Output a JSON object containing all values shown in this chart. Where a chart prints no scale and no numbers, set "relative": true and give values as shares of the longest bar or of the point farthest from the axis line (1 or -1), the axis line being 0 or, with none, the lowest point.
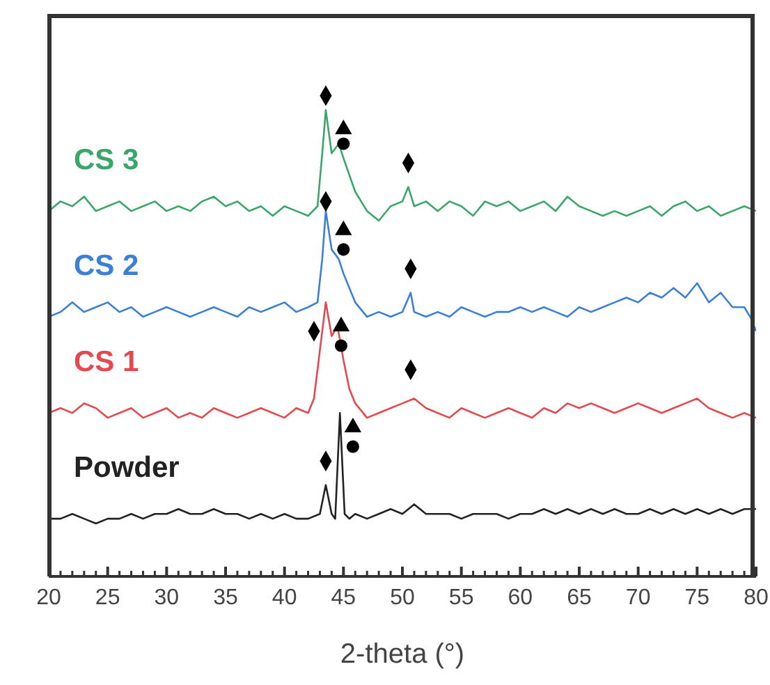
{
  "chart_data": {
    "type": "line",
    "xlabel": "2-theta (°)",
    "relative": true,
    "xlim": [
      20,
      80
    ],
    "xticks": [
      20,
      {
        "value": 21,
        "label": null
      },
      {
        "value": 22,
        "label": null
      },
      {
        "value": 23,
        "label": null
      },
      {
        "value": 24,
        "label": null
      },
      25,
      {
        "value": 26,
        "label": null
      },
      {
        "value": 27,
        "label": null
      },
      {
        "value": 28,
        "label": null
      },
      {
        "value": 29,
        "label": null
      },
      30,
      {
        "value": 31,
        "label": null
      },
      {
        "value": 32,
        "label": null
      },
      {
        "value": 33,
        "label": null
      },
      {
        "value": 34,
        "label": null
      },
      35,
      {
        "value": 36,
        "label": null
      },
      {
        "value": 37,
        "label": null
      },
      {
        "value": 38,
        "label": null
      },
      {
        "value": 39,
        "label": null
      },
      40,
      {
        "value": 41,
        "label": null
      },
      {
        "value": 42,
        "label": null
      },
      {
        "value": 43,
        "label": null
      },
      {
        "value": 44,
        "label": null
      },
      45,
      {
        "value": 46,
        "label": null
      },
      {
        "value": 47,
        "label": null
      },
      {
        "value": 48,
        "label": null
      },
      {
        "value": 49,
        "label": null
      },
      50,
      {
        "value": 51,
        "label": null
      },
      {
        "value": 52,
        "label": null
      },
      {
        "value": 53,
        "label": null
      },
      {
        "value": 54,
        "label": null
      },
      55,
      {
        "value": 56,
        "label": null
      },
      {
        "value": 57,
        "label": null
      },
      {
        "value": 58,
        "label": null
      },
      {
        "value": 59,
        "label": null
      },
      60,
      {
        "value": 61,
        "label": null
      },
      {
        "value": 62,
        "label": null
      },
      {
        "value": 63,
        "label": null
      },
      {
        "value": 64,
        "label": null
      },
      65,
      {
        "value": 66,
        "label": null
      },
      {
        "value": 67,
        "label": null
      },
      {
        "value": 68,
        "label": null
      },
      {
        "value": 69,
        "label": null
      },
      70,
      {
        "value": 71,
        "label": null
      },
      {
        "value": 72,
        "label": null
      },
      {
        "value": 73,
        "label": null
      },
      {
        "value": 74,
        "label": null
      },
      75,
      {
        "value": 76,
        "label": null
      },
      {
        "value": 77,
        "label": null
      },
      {
        "value": 78,
        "label": null
      },
      {
        "value": 79,
        "label": null
      },
      80
    ],
    "grid": false,
    "legend": false,
    "marker": "none",
    "line_style": "solid",
    "series": [
      {
        "name": "CS 3",
        "color": "#3aa66a",
        "x": [
          20,
          21,
          22,
          23,
          24,
          25,
          26,
          27,
          28,
          29,
          30,
          31,
          32,
          33,
          34,
          35,
          36,
          37,
          38,
          39,
          40,
          41,
          42,
          42.8,
          43.2,
          43.5,
          44,
          44.6,
          45,
          46,
          47,
          48,
          49,
          50,
          50.5,
          51,
          52,
          53,
          54,
          55,
          56,
          57,
          58,
          59,
          60,
          61,
          62,
          63,
          64,
          65,
          66,
          67,
          68,
          69,
          70,
          71,
          72,
          73,
          74,
          75,
          76,
          77,
          78,
          79,
          80
        ],
        "values": [
          0.76,
          0.78,
          0.77,
          0.79,
          0.76,
          0.77,
          0.78,
          0.76,
          0.77,
          0.78,
          0.76,
          0.77,
          0.76,
          0.78,
          0.79,
          0.77,
          0.78,
          0.76,
          0.77,
          0.75,
          0.77,
          0.76,
          0.75,
          0.77,
          0.88,
          0.97,
          0.88,
          0.9,
          0.87,
          0.8,
          0.76,
          0.74,
          0.77,
          0.78,
          0.81,
          0.77,
          0.78,
          0.76,
          0.78,
          0.77,
          0.75,
          0.78,
          0.77,
          0.78,
          0.76,
          0.77,
          0.78,
          0.76,
          0.79,
          0.77,
          0.76,
          0.75,
          0.76,
          0.75,
          0.76,
          0.77,
          0.75,
          0.77,
          0.78,
          0.76,
          0.77,
          0.75,
          0.76,
          0.77,
          0.76
        ]
      },
      {
        "name": "CS 2",
        "color": "#3b7fd6",
        "x": [
          20,
          21,
          22,
          23,
          24,
          25,
          26,
          27,
          28,
          29,
          30,
          31,
          32,
          33,
          34,
          35,
          36,
          37,
          38,
          39,
          40,
          41,
          42,
          42.8,
          43.2,
          43.5,
          44,
          44.6,
          45,
          46,
          47,
          48,
          49,
          50,
          50.7,
          51,
          52,
          53,
          54,
          55,
          56,
          57,
          58,
          59,
          60,
          61,
          62,
          63,
          64,
          65,
          66,
          67,
          68,
          69,
          70,
          71,
          72,
          73,
          74,
          75,
          76,
          77,
          78,
          79,
          79.5,
          80
        ],
        "values": [
          0.54,
          0.55,
          0.57,
          0.55,
          0.56,
          0.57,
          0.55,
          0.56,
          0.54,
          0.55,
          0.56,
          0.55,
          0.54,
          0.55,
          0.56,
          0.55,
          0.54,
          0.56,
          0.55,
          0.56,
          0.57,
          0.55,
          0.56,
          0.57,
          0.66,
          0.76,
          0.68,
          0.66,
          0.63,
          0.57,
          0.54,
          0.55,
          0.54,
          0.55,
          0.59,
          0.55,
          0.54,
          0.55,
          0.54,
          0.56,
          0.55,
          0.54,
          0.55,
          0.55,
          0.56,
          0.55,
          0.56,
          0.55,
          0.54,
          0.56,
          0.55,
          0.56,
          0.57,
          0.58,
          0.57,
          0.59,
          0.58,
          0.6,
          0.58,
          0.61,
          0.57,
          0.59,
          0.56,
          0.56,
          0.54,
          0.51
        ]
      },
      {
        "name": "CS 1",
        "color": "#e24a50",
        "x": [
          20,
          21,
          22,
          23,
          24,
          25,
          26,
          27,
          28,
          29,
          30,
          31,
          32,
          33,
          34,
          35,
          36,
          37,
          38,
          39,
          40,
          41,
          42,
          42.5,
          43,
          43.5,
          44,
          44.5,
          45,
          45.5,
          46,
          47,
          48,
          49,
          50,
          51,
          52,
          53,
          54,
          55,
          56,
          57,
          58,
          59,
          60,
          61,
          62,
          63,
          64,
          65,
          66,
          67,
          68,
          69,
          70,
          71,
          72,
          73,
          74,
          75,
          76,
          77,
          78,
          79,
          80
        ],
        "values": [
          0.34,
          0.35,
          0.34,
          0.36,
          0.35,
          0.33,
          0.34,
          0.35,
          0.33,
          0.34,
          0.35,
          0.33,
          0.34,
          0.33,
          0.35,
          0.34,
          0.33,
          0.34,
          0.35,
          0.34,
          0.33,
          0.35,
          0.34,
          0.37,
          0.47,
          0.57,
          0.5,
          0.52,
          0.45,
          0.39,
          0.36,
          0.33,
          0.34,
          0.35,
          0.36,
          0.37,
          0.35,
          0.34,
          0.33,
          0.35,
          0.34,
          0.33,
          0.34,
          0.35,
          0.34,
          0.33,
          0.35,
          0.34,
          0.36,
          0.35,
          0.36,
          0.35,
          0.34,
          0.35,
          0.36,
          0.35,
          0.34,
          0.35,
          0.36,
          0.37,
          0.35,
          0.34,
          0.33,
          0.34,
          0.33
        ]
      },
      {
        "name": "Powder",
        "color": "#222222",
        "x": [
          20,
          21,
          22,
          23,
          24,
          25,
          26,
          27,
          28,
          29,
          30,
          31,
          32,
          33,
          34,
          35,
          36,
          37,
          38,
          39,
          40,
          41,
          42,
          43,
          43.5,
          44,
          44.3,
          44.7,
          45.1,
          45.5,
          46,
          47,
          48,
          49,
          50,
          51,
          52,
          53,
          54,
          55,
          56,
          57,
          58,
          59,
          60,
          61,
          62,
          63,
          64,
          65,
          66,
          67,
          68,
          69,
          70,
          71,
          72,
          73,
          74,
          75,
          76,
          77,
          78,
          79,
          80
        ],
        "values": [
          0.12,
          0.12,
          0.13,
          0.12,
          0.11,
          0.12,
          0.12,
          0.13,
          0.12,
          0.13,
          0.13,
          0.14,
          0.13,
          0.13,
          0.14,
          0.13,
          0.13,
          0.12,
          0.13,
          0.12,
          0.13,
          0.12,
          0.12,
          0.13,
          0.19,
          0.13,
          0.12,
          0.34,
          0.13,
          0.12,
          0.13,
          0.12,
          0.13,
          0.14,
          0.13,
          0.15,
          0.13,
          0.13,
          0.13,
          0.12,
          0.13,
          0.13,
          0.13,
          0.12,
          0.13,
          0.13,
          0.14,
          0.13,
          0.14,
          0.13,
          0.14,
          0.13,
          0.14,
          0.13,
          0.13,
          0.14,
          0.13,
          0.14,
          0.13,
          0.14,
          0.13,
          0.14,
          0.13,
          0.14,
          0.14
        ]
      },
      {
        "type": "scatter",
        "marker": "diamond",
        "color": "#000000",
        "x": [
          43.5,
          50.5,
          43.5,
          50.7,
          42.5,
          50.7,
          43.5
        ],
        "values": [
          1.0,
          0.86,
          0.78,
          0.64,
          0.51,
          0.43,
          0.24
        ]
      },
      {
        "type": "scatter",
        "marker": "triangle",
        "color": "#000000",
        "x": [
          45,
          45,
          44.8,
          45.8
        ],
        "values": [
          0.93,
          0.72,
          0.52,
          0.31
        ]
      },
      {
        "type": "scatter",
        "marker": "circle",
        "color": "#000000",
        "x": [
          45,
          45,
          44.8,
          45.8
        ],
        "values": [
          0.9,
          0.68,
          0.48,
          0.27
        ]
      }
    ]
  }
}
